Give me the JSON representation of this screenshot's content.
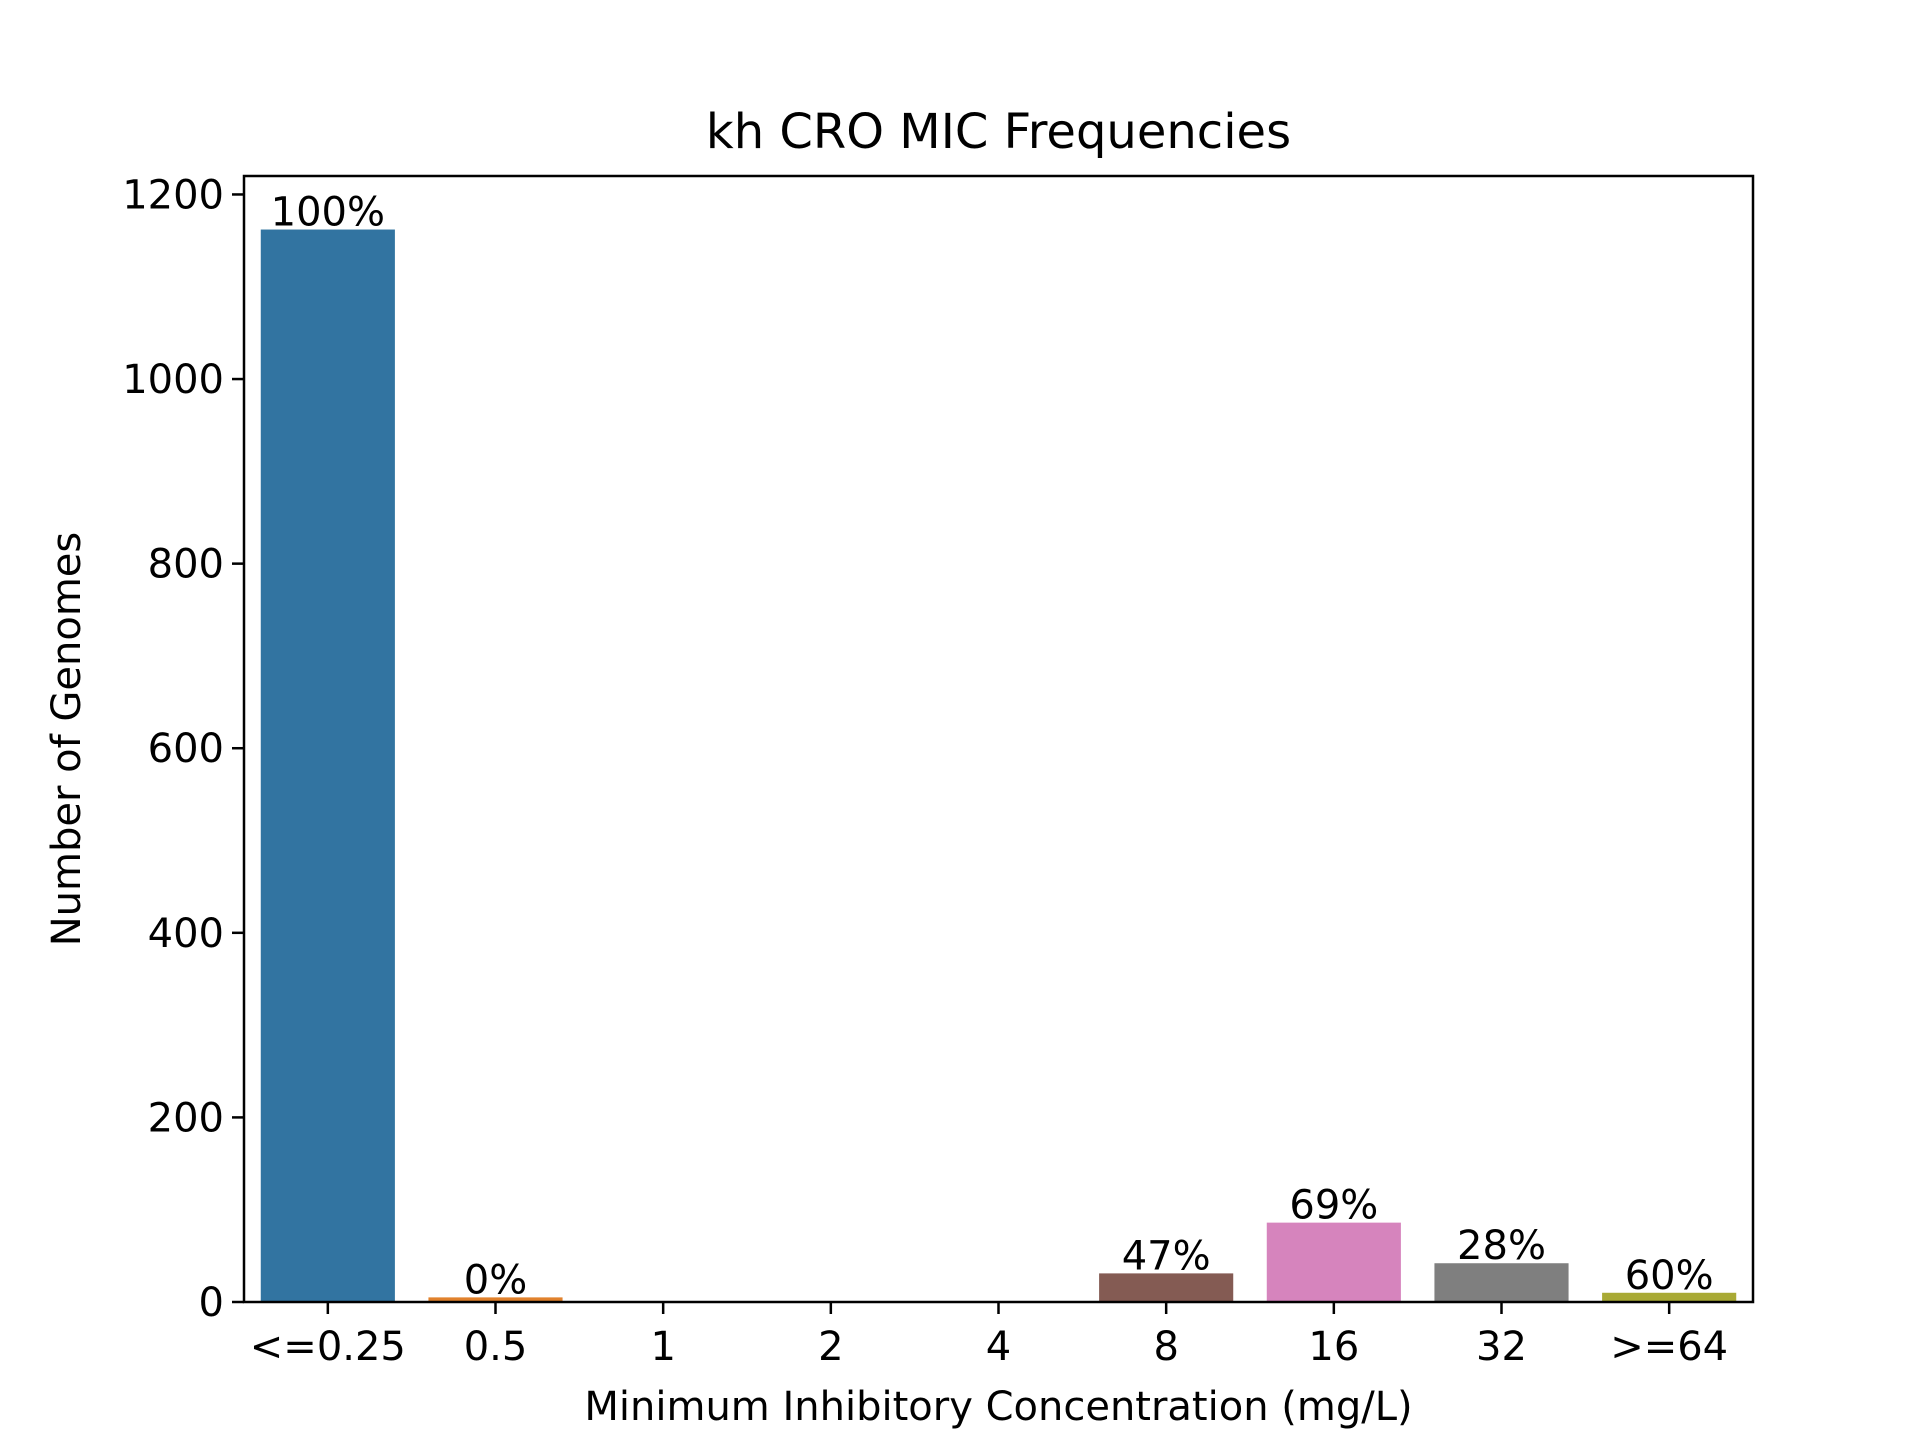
{
  "chart_data": {
    "type": "bar",
    "title": "kh CRO MIC Frequencies",
    "xlabel": "Minimum Inhibitory Concentration (mg/L)",
    "ylabel": "Number of Genomes",
    "categories": [
      "<=0.25",
      "0.5",
      "1",
      "2",
      "4",
      "8",
      "16",
      "32",
      ">=64"
    ],
    "values": [
      1162,
      5,
      0,
      0,
      0,
      31,
      86,
      42,
      10
    ],
    "bar_labels": [
      "100%",
      "0%",
      "",
      "",
      "",
      "47%",
      "69%",
      "28%",
      "60%"
    ],
    "colors": [
      "#3274a1",
      "#e1812c",
      "#3a923a",
      "#c03d3e",
      "#9372b2",
      "#845b53",
      "#d684bd",
      "#7f7f7f",
      "#a9aa35"
    ],
    "ylim": [
      0,
      1220
    ],
    "yticks": [
      0,
      200,
      400,
      600,
      800,
      1000,
      1200
    ],
    "grid": false,
    "legend": "none"
  }
}
